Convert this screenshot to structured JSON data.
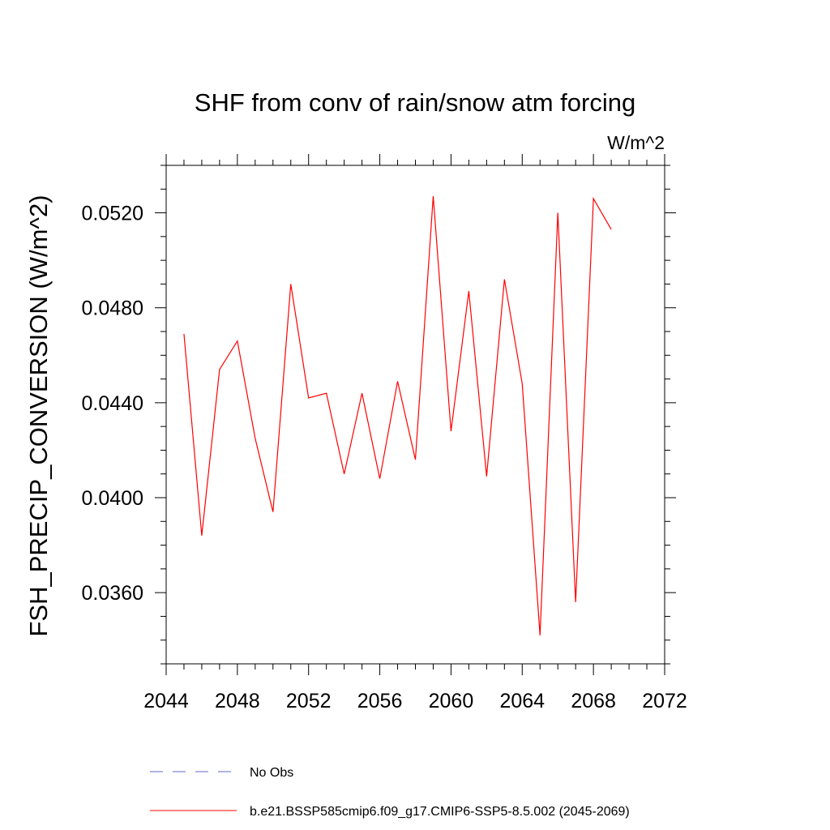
{
  "chart_data": {
    "type": "line",
    "title": "SHF from conv of rain/snow atm forcing",
    "units_label": "W/m^2",
    "ylabel": "FSH_PRECIP_CONVERSION  (W/m^2)",
    "xlabel": "",
    "xlim": [
      2044,
      2072
    ],
    "ylim": [
      0.033,
      0.054
    ],
    "x_ticks": [
      2044,
      2048,
      2052,
      2056,
      2060,
      2064,
      2068,
      2072
    ],
    "x_tick_labels": [
      "2044",
      "2048",
      "2052",
      "2056",
      "2060",
      "2064",
      "2068",
      "2072"
    ],
    "y_ticks": [
      0.036,
      0.04,
      0.044,
      0.048,
      0.052
    ],
    "y_tick_labels": [
      "0.0360",
      "0.0400",
      "0.0440",
      "0.0480",
      "0.0520"
    ],
    "series": [
      {
        "name": "b.e21.BSSP585cmip6.f09_g17.CMIP6-SSP5-8.5.002 (2045-2069)",
        "color": "#ff0000",
        "style": "solid",
        "x": [
          2045,
          2046,
          2047,
          2048,
          2049,
          2050,
          2051,
          2052,
          2053,
          2054,
          2055,
          2056,
          2057,
          2058,
          2059,
          2060,
          2061,
          2062,
          2063,
          2064,
          2065,
          2066,
          2067,
          2068,
          2069
        ],
        "y": [
          0.0469,
          0.0384,
          0.0454,
          0.0466,
          0.0425,
          0.0394,
          0.049,
          0.0442,
          0.0444,
          0.041,
          0.0444,
          0.0408,
          0.0449,
          0.0416,
          0.0527,
          0.0428,
          0.0487,
          0.0409,
          0.0492,
          0.0448,
          0.0342,
          0.052,
          0.0356,
          0.0526,
          0.0513
        ]
      }
    ],
    "legend": [
      {
        "label": "No Obs",
        "color": "#6666cc",
        "style": "dashed"
      },
      {
        "label": "b.e21.BSSP585cmip6.f09_g17.CMIP6-SSP5-8.5.002 (2045-2069)",
        "color": "#ff0000",
        "style": "solid"
      }
    ]
  }
}
